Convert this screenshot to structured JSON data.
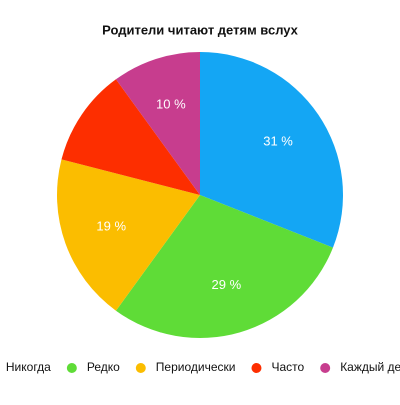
{
  "chart_data": {
    "type": "pie",
    "title": "Родители читают детям вслух",
    "categories": [
      "Никогда",
      "Редко",
      "Периодически",
      "Часто",
      "Каждый день"
    ],
    "values": [
      31,
      29,
      19,
      11,
      10
    ],
    "value_labels": [
      "31 %",
      "29 %",
      "19 %",
      null,
      "10 %"
    ],
    "colors": [
      "#14a6f4",
      "#5fdc37",
      "#fbbd00",
      "#fd2e00",
      "#c73d8e"
    ],
    "legend": "bottom"
  }
}
